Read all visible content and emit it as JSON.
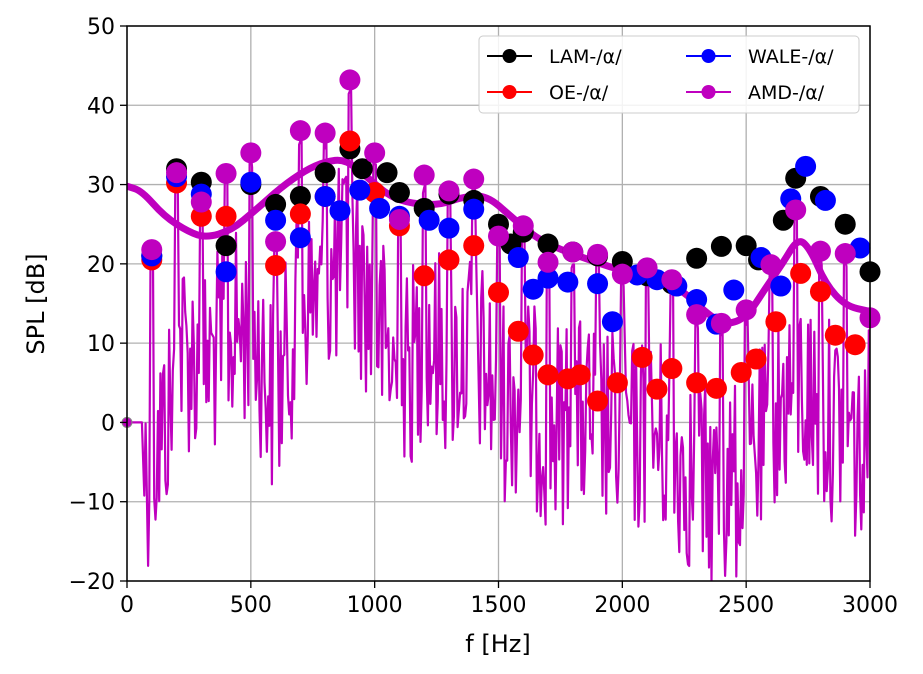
{
  "chart_data": {
    "type": "line",
    "title": "",
    "xlabel": "f [Hz]",
    "ylabel": "SPL [dB]",
    "xlim": [
      0,
      3000
    ],
    "ylim": [
      -20,
      50
    ],
    "grid": true,
    "legend_position": "top-right",
    "legend_columns": 2,
    "xticks": [
      0,
      500,
      1000,
      1500,
      2000,
      2500,
      3000
    ],
    "xtick_labels": [
      "0",
      "500",
      "1000",
      "1500",
      "2000",
      "2500",
      "3000"
    ],
    "yticks": [
      -20,
      -10,
      0,
      10,
      20,
      30,
      40,
      50
    ],
    "ytick_labels": [
      "−20",
      "−10",
      "0",
      "10",
      "20",
      "30",
      "40",
      "50"
    ],
    "series": [
      {
        "name": "LAM-/α/",
        "color": "#000000",
        "x": [
          100,
          200,
          300,
          400,
          500,
          600,
          700,
          800,
          900,
          950,
          1050,
          1100,
          1200,
          1300,
          1400,
          1500,
          1550,
          1600,
          1700,
          1800,
          1900,
          2000,
          2100,
          2200,
          2300,
          2400,
          2500,
          2550,
          2650,
          2700,
          2800,
          2900,
          3000
        ],
        "y": [
          21,
          32,
          30.3,
          22.3,
          30,
          27.5,
          28.5,
          31.5,
          34.5,
          32,
          31.5,
          29,
          27,
          28.8,
          28,
          25,
          22.5,
          24,
          22.5,
          21.5,
          21,
          20.3,
          18.5,
          17.5,
          20.7,
          22.2,
          22.3,
          20.5,
          25.5,
          30.8,
          28.5,
          25,
          19
        ]
      },
      {
        "name": "OE-/α/",
        "color": "#ff0000",
        "x": [
          100,
          200,
          300,
          400,
          600,
          700,
          800,
          900,
          1000,
          1100,
          1200,
          1300,
          1400,
          1500,
          1580,
          1640,
          1700,
          1780,
          1830,
          1900,
          1980,
          2080,
          2140,
          2200,
          2300,
          2380,
          2480,
          2540,
          2620,
          2720,
          2800,
          2860,
          2940
        ],
        "y": [
          20.5,
          30.2,
          26,
          26,
          19.8,
          26.3,
          28.5,
          35.5,
          29,
          24.8,
          18.5,
          20.5,
          22.3,
          16.4,
          11.5,
          8.5,
          6,
          5.5,
          6,
          2.7,
          5,
          8.2,
          4.2,
          6.8,
          5,
          4.3,
          6.3,
          8,
          12.7,
          18.8,
          16.5,
          11,
          9.8
        ]
      },
      {
        "name": "WALE-/α/",
        "color": "#0000ff",
        "x": [
          100,
          200,
          300,
          400,
          500,
          600,
          700,
          800,
          860,
          940,
          1020,
          1100,
          1220,
          1300,
          1400,
          1580,
          1640,
          1700,
          1780,
          1900,
          1960,
          2060,
          2140,
          2220,
          2300,
          2380,
          2450,
          2560,
          2640,
          2680,
          2740,
          2820,
          2960
        ],
        "y": [
          21,
          31,
          28.8,
          19,
          30.3,
          25.5,
          23.3,
          28.5,
          26.7,
          29.3,
          27,
          26,
          25.5,
          24.5,
          26.9,
          20.8,
          16.8,
          18.2,
          17.7,
          17.5,
          12.7,
          18.6,
          18,
          17.2,
          15.5,
          12.4,
          16.7,
          20.8,
          17.2,
          28.2,
          32.3,
          28,
          22
        ]
      },
      {
        "name": "AMD-/α/",
        "color": "#bf00bf",
        "x": [
          100,
          200,
          300,
          400,
          500,
          600,
          700,
          800,
          900,
          1000,
          1100,
          1200,
          1300,
          1400,
          1500,
          1600,
          1700,
          1800,
          1900,
          2000,
          2100,
          2200,
          2300,
          2400,
          2500,
          2600,
          2700,
          2800,
          2900,
          3000
        ],
        "y": [
          21.8,
          31.5,
          27.8,
          31.4,
          34,
          22.8,
          36.8,
          36.5,
          43.2,
          34,
          25.6,
          31.2,
          29.2,
          30.7,
          23.5,
          24.8,
          20.2,
          21.5,
          21.2,
          18.7,
          19.5,
          18,
          13.6,
          12.5,
          14.2,
          19.9,
          26.8,
          21.6,
          21.3,
          13.2
        ]
      }
    ]
  }
}
